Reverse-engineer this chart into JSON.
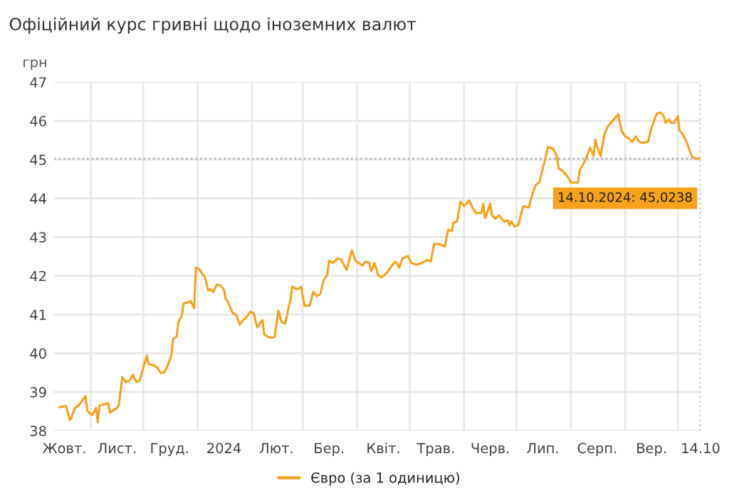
{
  "chart_data": {
    "type": "line",
    "title": "Офіційний курс гривні щодо іноземних валют",
    "ylabel": "грн",
    "x": [
      "2023-10-14",
      "2023-10-18",
      "2023-10-20",
      "2023-10-21",
      "2023-10-23",
      "2023-10-25",
      "2023-10-27",
      "2023-10-29",
      "2023-10-30",
      "2023-10-31",
      "2023-11-02",
      "2023-11-04",
      "2023-11-05",
      "2023-11-06",
      "2023-11-09",
      "2023-11-11",
      "2023-11-12",
      "2023-11-14",
      "2023-11-16",
      "2023-11-17",
      "2023-11-19",
      "2023-11-21",
      "2023-11-23",
      "2023-11-25",
      "2023-11-27",
      "2023-11-29",
      "2023-12-01",
      "2023-12-03",
      "2023-12-04",
      "2023-12-07",
      "2023-12-09",
      "2023-12-11",
      "2023-12-13",
      "2023-12-15",
      "2023-12-17",
      "2023-12-18",
      "2023-12-20",
      "2023-12-21",
      "2023-12-23",
      "2023-12-24",
      "2023-12-26",
      "2023-12-28",
      "2023-12-30",
      "2023-12-31",
      "2024-01-02",
      "2024-01-04",
      "2024-01-05",
      "2024-01-07",
      "2024-01-08",
      "2024-01-10",
      "2024-01-12",
      "2024-01-14",
      "2024-01-16",
      "2024-01-17",
      "2024-01-18",
      "2024-01-21",
      "2024-01-23",
      "2024-01-25",
      "2024-01-27",
      "2024-01-29",
      "2024-01-31",
      "2024-02-02",
      "2024-02-04",
      "2024-02-06",
      "2024-02-07",
      "2024-02-08",
      "2024-02-10",
      "2024-02-12",
      "2024-02-14",
      "2024-02-16",
      "2024-02-18",
      "2024-02-20",
      "2024-02-23",
      "2024-02-24",
      "2024-02-27",
      "2024-02-29",
      "2024-03-02",
      "2024-03-05",
      "2024-03-07",
      "2024-03-09",
      "2024-03-11",
      "2024-03-13",
      "2024-03-15",
      "2024-03-16",
      "2024-03-18",
      "2024-03-21",
      "2024-03-23",
      "2024-03-26",
      "2024-03-29",
      "2024-03-31",
      "2024-04-02",
      "2024-04-04",
      "2024-04-06",
      "2024-04-08",
      "2024-04-09",
      "2024-04-11",
      "2024-04-13",
      "2024-04-15",
      "2024-04-18",
      "2024-04-21",
      "2024-04-23",
      "2024-04-25",
      "2024-04-27",
      "2024-04-30",
      "2024-05-02",
      "2024-05-05",
      "2024-05-08",
      "2024-05-11",
      "2024-05-13",
      "2024-05-15",
      "2024-05-18",
      "2024-05-21",
      "2024-05-23",
      "2024-05-25",
      "2024-05-26",
      "2024-05-28",
      "2024-05-30",
      "2024-06-01",
      "2024-06-04",
      "2024-06-06",
      "2024-06-08",
      "2024-06-11",
      "2024-06-12",
      "2024-06-13",
      "2024-06-16",
      "2024-06-17",
      "2024-06-19",
      "2024-06-21",
      "2024-06-24",
      "2024-06-26",
      "2024-06-27",
      "2024-06-28",
      "2024-06-30",
      "2024-07-02",
      "2024-07-04",
      "2024-07-05",
      "2024-07-08",
      "2024-07-10",
      "2024-07-12",
      "2024-07-14",
      "2024-07-17",
      "2024-07-19",
      "2024-07-22",
      "2024-07-24",
      "2024-07-25",
      "2024-07-27",
      "2024-07-30",
      "2024-08-01",
      "2024-08-05",
      "2024-08-06",
      "2024-08-09",
      "2024-08-12",
      "2024-08-14",
      "2024-08-15",
      "2024-08-16",
      "2024-08-18",
      "2024-08-20",
      "2024-08-22",
      "2024-08-24",
      "2024-08-25",
      "2024-08-28",
      "2024-08-29",
      "2024-08-30",
      "2024-09-01",
      "2024-09-03",
      "2024-09-05",
      "2024-09-07",
      "2024-09-09",
      "2024-09-11",
      "2024-09-14",
      "2024-09-16",
      "2024-09-18",
      "2024-09-19",
      "2024-09-21",
      "2024-09-23",
      "2024-09-24",
      "2024-09-26",
      "2024-09-27",
      "2024-09-29",
      "2024-10-01",
      "2024-10-02",
      "2024-10-04",
      "2024-10-06",
      "2024-10-07",
      "2024-10-09",
      "2024-10-11",
      "2024-10-14"
    ],
    "series": [
      {
        "name": "Євро (за 1 одиницю)",
        "color": "#f7a21b",
        "values": [
          38.61,
          38.64,
          38.28,
          38.34,
          38.59,
          38.65,
          38.77,
          38.9,
          38.53,
          38.47,
          38.41,
          38.59,
          38.22,
          38.65,
          38.69,
          38.71,
          38.47,
          38.53,
          38.59,
          38.65,
          39.39,
          39.26,
          39.29,
          39.45,
          39.26,
          39.3,
          39.63,
          39.94,
          39.72,
          39.69,
          39.63,
          39.49,
          39.51,
          39.69,
          39.94,
          40.37,
          40.43,
          40.8,
          40.98,
          41.29,
          41.31,
          41.35,
          41.16,
          42.21,
          42.17,
          42.02,
          42.0,
          41.63,
          41.65,
          41.59,
          41.78,
          41.75,
          41.65,
          41.41,
          41.35,
          41.04,
          41.0,
          40.74,
          40.86,
          40.94,
          41.07,
          41.04,
          40.67,
          40.8,
          40.86,
          40.49,
          40.43,
          40.4,
          40.43,
          41.1,
          40.8,
          40.77,
          41.41,
          41.72,
          41.65,
          41.72,
          41.23,
          41.23,
          41.59,
          41.47,
          41.53,
          41.9,
          42.02,
          42.39,
          42.33,
          42.45,
          42.41,
          42.15,
          42.66,
          42.39,
          42.33,
          42.27,
          42.37,
          42.33,
          42.12,
          42.33,
          42.02,
          41.96,
          42.08,
          42.27,
          42.37,
          42.21,
          42.45,
          42.51,
          42.33,
          42.29,
          42.33,
          42.41,
          42.37,
          42.82,
          42.82,
          42.76,
          43.19,
          43.15,
          43.37,
          43.4,
          43.92,
          43.8,
          43.95,
          43.74,
          43.62,
          43.62,
          43.86,
          43.49,
          43.86,
          43.56,
          43.47,
          43.56,
          43.4,
          43.43,
          43.31,
          43.4,
          43.27,
          43.31,
          43.68,
          43.8,
          43.76,
          44.11,
          44.35,
          44.41,
          44.96,
          45.33,
          45.27,
          45.09,
          44.78,
          44.72,
          44.57,
          44.41,
          44.4,
          44.72,
          44.96,
          45.31,
          45.09,
          45.52,
          45.33,
          45.09,
          45.64,
          45.85,
          45.97,
          46.01,
          46.17,
          45.95,
          45.73,
          45.6,
          45.55,
          45.46,
          45.6,
          45.46,
          45.43,
          45.46,
          45.82,
          46.07,
          46.19,
          46.22,
          46.13,
          45.95,
          46.04,
          45.95,
          45.95,
          46.13,
          45.76,
          45.64,
          45.46,
          45.33,
          45.09,
          45.03,
          45.0238
        ]
      }
    ],
    "xlim": [
      "2023-10-11",
      "2024-10-14"
    ],
    "xticks": [
      {
        "value": "2023-10-17",
        "label": "Жовт."
      },
      {
        "value": "2023-11-01",
        "label": null
      },
      {
        "value": "2023-11-16",
        "label": "Лист."
      },
      {
        "value": "2023-12-01",
        "label": null
      },
      {
        "value": "2023-12-16",
        "label": "Груд."
      },
      {
        "value": "2024-01-01",
        "label": null
      },
      {
        "value": "2024-01-16",
        "label": "2024"
      },
      {
        "value": "2024-02-01",
        "label": null
      },
      {
        "value": "2024-02-15",
        "label": "Лют."
      },
      {
        "value": "2024-03-01",
        "label": null
      },
      {
        "value": "2024-03-16",
        "label": "Бер."
      },
      {
        "value": "2024-04-01",
        "label": null
      },
      {
        "value": "2024-04-16",
        "label": "Квіт."
      },
      {
        "value": "2024-05-01",
        "label": null
      },
      {
        "value": "2024-05-16",
        "label": "Трав."
      },
      {
        "value": "2024-06-01",
        "label": null
      },
      {
        "value": "2024-06-16",
        "label": "Черв."
      },
      {
        "value": "2024-07-01",
        "label": null
      },
      {
        "value": "2024-07-16",
        "label": "Лип."
      },
      {
        "value": "2024-08-01",
        "label": null
      },
      {
        "value": "2024-08-16",
        "label": "Серп."
      },
      {
        "value": "2024-09-01",
        "label": null
      },
      {
        "value": "2024-09-16",
        "label": "Вер."
      },
      {
        "value": "2024-10-01",
        "label": null
      },
      {
        "value": "2024-10-14",
        "label": "14.10"
      }
    ],
    "ylim": [
      38,
      47
    ],
    "yticks": [
      38,
      39,
      40,
      41,
      42,
      43,
      44,
      45,
      46,
      47
    ],
    "grid": true,
    "legend": "bottom",
    "marker": "none",
    "line_style": "solid",
    "ref_lines": [
      {
        "axis": "y",
        "value": 45.0238,
        "color": "#aaaaaa",
        "line_style": "dotted"
      },
      {
        "axis": "x",
        "value": "2024-10-14",
        "color": "#aaaaaa",
        "line_style": "dotted"
      }
    ],
    "annotations": [
      {
        "text": "14.10.2024: 45,0238",
        "x": "2024-10-14",
        "y": 45.0238
      }
    ]
  }
}
